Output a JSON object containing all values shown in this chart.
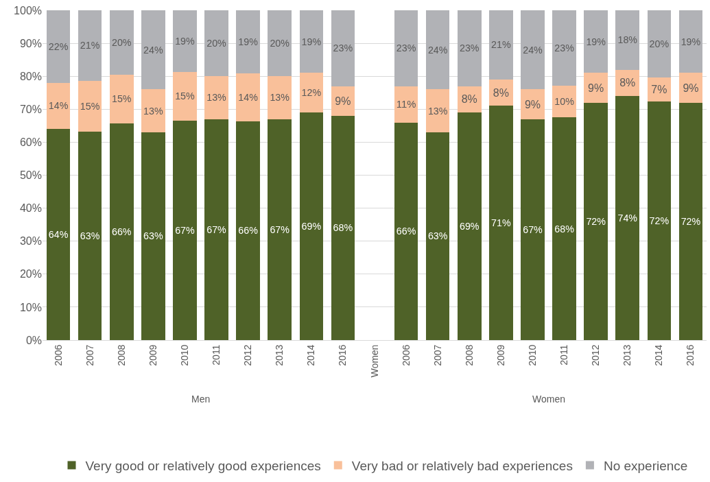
{
  "chart_data": {
    "type": "bar",
    "stacked": true,
    "categories": [
      "2006",
      "2007",
      "2008",
      "2009",
      "2010",
      "2011",
      "2012",
      "2013",
      "2014",
      "2016",
      "Women",
      "2006",
      "2007",
      "2008",
      "2009",
      "2010",
      "2011",
      "2012",
      "2013",
      "2014",
      "2016"
    ],
    "series": [
      {
        "name": "Very good or relatively good experiences",
        "color": "#4f6228",
        "values": [
          64,
          63.3,
          65.8,
          63,
          66.6,
          67,
          66.4,
          67,
          69,
          68,
          null,
          66,
          63,
          69,
          71,
          67,
          67.5,
          72,
          74,
          72.3,
          72
        ],
        "value_labels": [
          "64%",
          "63%",
          "66%",
          "63%",
          "67%",
          "67%",
          "66%",
          "67%",
          "69%",
          "68%",
          null,
          "66%",
          "63%",
          "69%",
          "71%",
          "67%",
          "68%",
          "72%",
          "74%",
          "72%",
          "72%"
        ]
      },
      {
        "name": "Very bad or relatively bad experiences",
        "color": "#f9c09a",
        "values": [
          14,
          15.3,
          14.7,
          13,
          14.6,
          13,
          14.4,
          13,
          12,
          9,
          null,
          11,
          13,
          8,
          8,
          9,
          9.6,
          9,
          8,
          7.4,
          9
        ],
        "value_labels": [
          "14%",
          "15%",
          "15%",
          "13%",
          "15%",
          "13%",
          "14%",
          "13%",
          "12%",
          "9%",
          null,
          "11%",
          "13%",
          "8%",
          "8%",
          "9%",
          "10%",
          "9%",
          "8%",
          "7%",
          "9%"
        ]
      },
      {
        "name": "No experience",
        "color": "#b1b2b6",
        "values": [
          22,
          21.4,
          19.5,
          24,
          18.8,
          20,
          19.1,
          20,
          19,
          23,
          null,
          23,
          24,
          23,
          21,
          24,
          22.9,
          19,
          18,
          20.3,
          19
        ],
        "value_labels": [
          "22%",
          "21%",
          "20%",
          "24%",
          "19%",
          "20%",
          "19%",
          "20%",
          "19%",
          "23%",
          null,
          "23%",
          "24%",
          "23%",
          "21%",
          "24%",
          "23%",
          "19%",
          "18%",
          "20%",
          "19%"
        ]
      }
    ],
    "ylim": [
      0,
      100
    ],
    "yticks": [
      {
        "value": 0,
        "label": "0%"
      },
      {
        "value": 10,
        "label": "10%"
      },
      {
        "value": 20,
        "label": "20%"
      },
      {
        "value": 30,
        "label": "30%"
      },
      {
        "value": 40,
        "label": "40%"
      },
      {
        "value": 50,
        "label": "50%"
      },
      {
        "value": 60,
        "label": "60%"
      },
      {
        "value": 70,
        "label": "70%"
      },
      {
        "value": 80,
        "label": "80%"
      },
      {
        "value": 90,
        "label": "90%"
      },
      {
        "value": 100,
        "label": "100%"
      }
    ],
    "grid": "y",
    "legend": "bottom",
    "annotations": [
      "Men",
      "Women"
    ]
  }
}
